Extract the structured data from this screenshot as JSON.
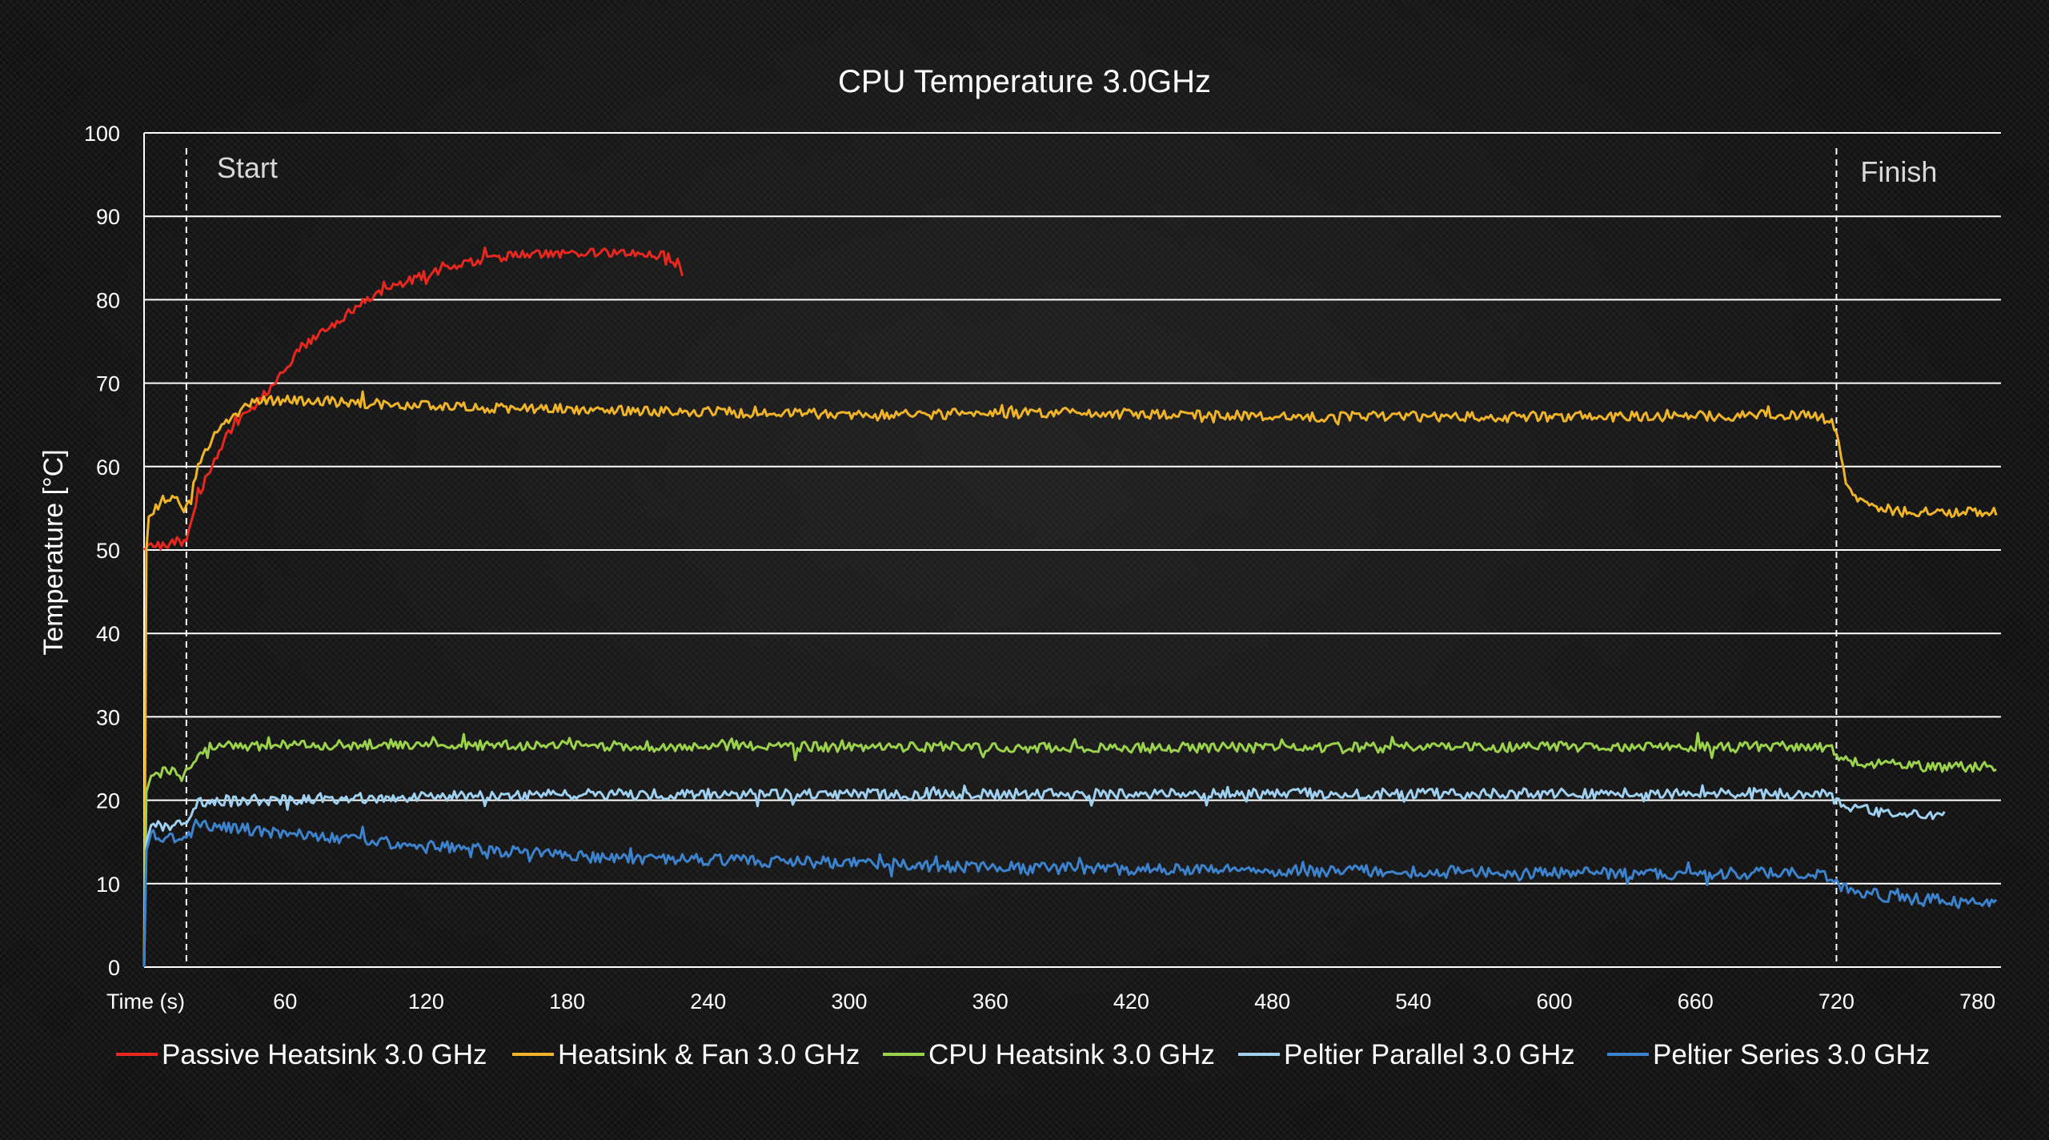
{
  "chart_data": {
    "type": "line",
    "title": "CPU Temperature 3.0GHz",
    "xlabel": "Time (s)",
    "ylabel": "Temperature [°C]",
    "xlim": [
      0,
      790
    ],
    "ylim": [
      0,
      100
    ],
    "x_ticks": [
      60,
      120,
      180,
      240,
      300,
      360,
      420,
      480,
      540,
      600,
      660,
      720,
      780
    ],
    "y_ticks": [
      0,
      10,
      20,
      30,
      40,
      50,
      60,
      70,
      80,
      90,
      100
    ],
    "grid": true,
    "legend_position": "bottom",
    "annotations": [
      {
        "label": "Start",
        "x": 18
      },
      {
        "label": "Finish",
        "x": 720
      }
    ],
    "series": [
      {
        "name": "Passive Heatsink 3.0 GHz",
        "color": "#e8281e",
        "points": [
          [
            0,
            50
          ],
          [
            3,
            51
          ],
          [
            8,
            50.5
          ],
          [
            14,
            51
          ],
          [
            18,
            51
          ],
          [
            20,
            53
          ],
          [
            24,
            57
          ],
          [
            30,
            61
          ],
          [
            36,
            64
          ],
          [
            42,
            66
          ],
          [
            48,
            67.5
          ],
          [
            55,
            70
          ],
          [
            60,
            72
          ],
          [
            70,
            75
          ],
          [
            80,
            77
          ],
          [
            90,
            79
          ],
          [
            100,
            81
          ],
          [
            110,
            82
          ],
          [
            120,
            83
          ],
          [
            130,
            84
          ],
          [
            140,
            84.5
          ],
          [
            150,
            85
          ],
          [
            160,
            85.3
          ],
          [
            170,
            85.5
          ],
          [
            180,
            85.6
          ],
          [
            190,
            85.6
          ],
          [
            200,
            85.6
          ],
          [
            210,
            85.5
          ],
          [
            220,
            85.4
          ],
          [
            228,
            84.5
          ],
          [
            229,
            83
          ]
        ]
      },
      {
        "name": "Heatsink & Fan 3.0 GHz",
        "color": "#f0b429",
        "points": [
          [
            0,
            0
          ],
          [
            1,
            50
          ],
          [
            2,
            54
          ],
          [
            5,
            55
          ],
          [
            8,
            56
          ],
          [
            12,
            56.5
          ],
          [
            16,
            55
          ],
          [
            18,
            55
          ],
          [
            20,
            57
          ],
          [
            24,
            61
          ],
          [
            30,
            64
          ],
          [
            36,
            65.5
          ],
          [
            42,
            67
          ],
          [
            50,
            68
          ],
          [
            60,
            68
          ],
          [
            80,
            67.8
          ],
          [
            100,
            67.5
          ],
          [
            150,
            67
          ],
          [
            200,
            66.8
          ],
          [
            250,
            66.5
          ],
          [
            300,
            66.2
          ],
          [
            350,
            66.3
          ],
          [
            400,
            66.5
          ],
          [
            450,
            66.2
          ],
          [
            500,
            66
          ],
          [
            550,
            66
          ],
          [
            600,
            66
          ],
          [
            650,
            66
          ],
          [
            700,
            66.2
          ],
          [
            717,
            65.8
          ],
          [
            720,
            64
          ],
          [
            724,
            58
          ],
          [
            730,
            56
          ],
          [
            740,
            55
          ],
          [
            760,
            54.5
          ],
          [
            780,
            54.5
          ],
          [
            788,
            54.6
          ]
        ]
      },
      {
        "name": "CPU Heatsink 3.0 GHz",
        "color": "#9ad24c",
        "points": [
          [
            0,
            0
          ],
          [
            1,
            21
          ],
          [
            3,
            23
          ],
          [
            10,
            23.5
          ],
          [
            18,
            23.5
          ],
          [
            22,
            25
          ],
          [
            28,
            26.5
          ],
          [
            40,
            26.5
          ],
          [
            100,
            26.7
          ],
          [
            200,
            26.5
          ],
          [
            300,
            26.4
          ],
          [
            400,
            26.3
          ],
          [
            500,
            26.3
          ],
          [
            600,
            26.4
          ],
          [
            700,
            26.5
          ],
          [
            717,
            26.4
          ],
          [
            722,
            25
          ],
          [
            730,
            24.5
          ],
          [
            760,
            24
          ],
          [
            788,
            24
          ]
        ]
      },
      {
        "name": "Peltier Parallel 3.0 GHz",
        "color": "#9fd0f0",
        "points": [
          [
            0,
            0
          ],
          [
            1,
            15
          ],
          [
            3,
            17
          ],
          [
            10,
            17
          ],
          [
            18,
            17.5
          ],
          [
            20,
            18.5
          ],
          [
            22,
            19.5
          ],
          [
            30,
            20
          ],
          [
            60,
            20
          ],
          [
            120,
            20.5
          ],
          [
            200,
            20.7
          ],
          [
            300,
            20.7
          ],
          [
            400,
            20.7
          ],
          [
            500,
            20.8
          ],
          [
            600,
            20.8
          ],
          [
            700,
            20.8
          ],
          [
            717,
            20.6
          ],
          [
            722,
            19.3
          ],
          [
            740,
            18.5
          ],
          [
            760,
            18.3
          ],
          [
            766,
            18
          ]
        ]
      },
      {
        "name": "Peltier Series 3.0 GHz",
        "color": "#3c82cc",
        "points": [
          [
            0,
            0
          ],
          [
            1,
            14
          ],
          [
            3,
            16
          ],
          [
            10,
            15.5
          ],
          [
            18,
            15.5
          ],
          [
            22,
            17
          ],
          [
            30,
            17
          ],
          [
            60,
            16
          ],
          [
            100,
            15
          ],
          [
            150,
            14
          ],
          [
            200,
            13
          ],
          [
            250,
            12.8
          ],
          [
            300,
            12.5
          ],
          [
            350,
            12
          ],
          [
            400,
            11.8
          ],
          [
            450,
            11.6
          ],
          [
            500,
            11.5
          ],
          [
            550,
            11.4
          ],
          [
            600,
            11.3
          ],
          [
            650,
            11.2
          ],
          [
            700,
            11.3
          ],
          [
            717,
            11
          ],
          [
            722,
            9.5
          ],
          [
            740,
            8.5
          ],
          [
            760,
            8.2
          ],
          [
            788,
            7.8
          ]
        ]
      }
    ]
  }
}
